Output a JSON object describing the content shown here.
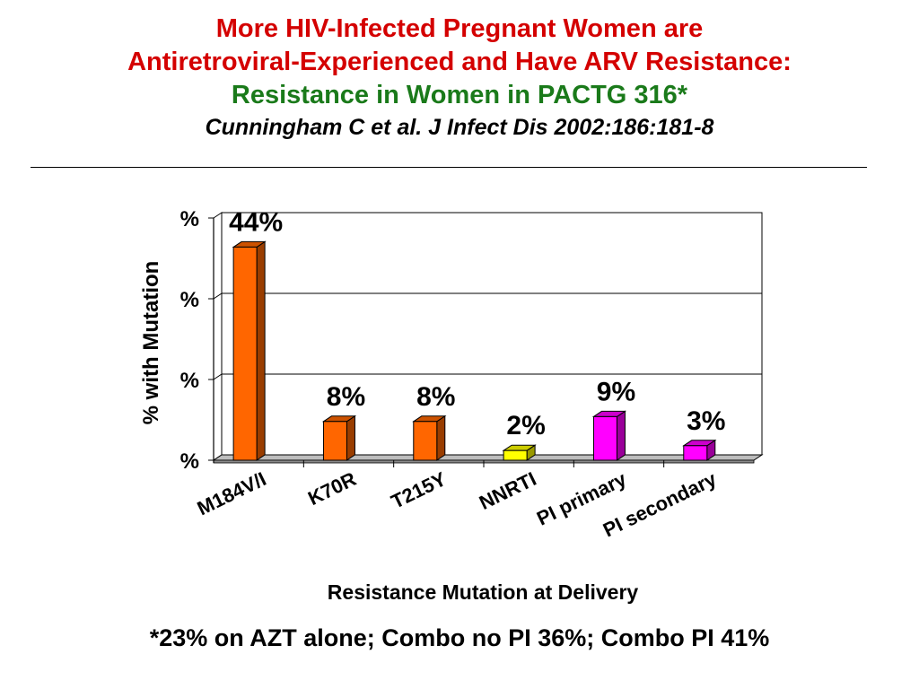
{
  "header": {
    "title_line1": "More HIV-Infected Pregnant Women are",
    "title_line2": "Antiretroviral-Experienced and Have ARV Resistance:",
    "subtitle": "Resistance in Women in PACTG 316*",
    "citation": "Cunningham C et al.  J Infect Dis 2002:186:181-8"
  },
  "footnote": "*23% on AZT alone; Combo no PI 36%; Combo PI 41%",
  "chart_data": {
    "type": "bar",
    "categories": [
      "M184V/I",
      "K70R",
      "T215Y",
      "NNRTI",
      "PI primary",
      "PI secondary"
    ],
    "values": [
      44,
      8,
      8,
      2,
      9,
      3
    ],
    "data_labels": [
      "44%",
      "8%",
      "8%",
      "2%",
      "9%",
      "3%"
    ],
    "bar_colors": [
      "#ff6600",
      "#ff6600",
      "#ff6600",
      "#ffff00",
      "#ff00ff",
      "#ff00ff"
    ],
    "xlabel": "Resistance Mutation at Delivery",
    "ylabel": "% with Mutation",
    "ytick_labels": [
      "%",
      "%",
      "%",
      "%"
    ],
    "ylim": [
      0,
      50
    ],
    "grid": true,
    "three_d": true
  }
}
